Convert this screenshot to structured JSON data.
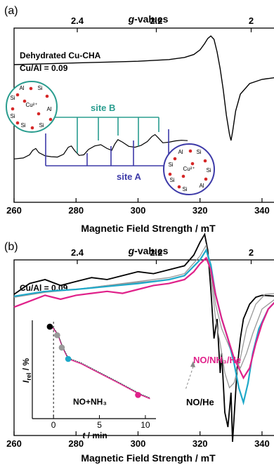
{
  "chart_data": [
    {
      "panel_label": "(a)",
      "type": "line",
      "top_axis_title_g": "g",
      "top_axis_title_rest": "-values",
      "top_ticks": [
        {
          "label": "2.4",
          "field_mT": 280.4
        },
        {
          "label": "2.2",
          "field_mT": 305.9
        },
        {
          "label": "2",
          "field_mT": 336.5
        }
      ],
      "xlabel": "Magnetic Field Strength / mT",
      "xlim": [
        260,
        345
      ],
      "xticks": [
        "260",
        "280",
        "300",
        "320",
        "340"
      ],
      "annotations": [
        "Dehydrated Cu-CHA",
        "Cu/Al = 0.09",
        "site B",
        "site A"
      ],
      "series": [
        {
          "x": [
            260,
            270,
            280,
            290,
            300,
            310,
            315,
            318,
            320,
            321.5,
            322.5,
            323.5,
            324.5,
            325.5,
            326.5,
            327.5,
            328.5,
            329.5,
            330,
            330.5,
            331.5,
            333,
            336,
            340,
            345
          ],
          "y": [
            0.3,
            0.32,
            0.34,
            0.36,
            0.38,
            0.42,
            0.47,
            0.54,
            0.65,
            0.8,
            0.92,
            0.98,
            0.9,
            0.6,
            0.2,
            -0.3,
            -0.9,
            -1.35,
            -1.5,
            -1.3,
            -0.8,
            -0.4,
            -0.15,
            -0.05,
            0
          ]
        },
        {
          "x": [
            260,
            263,
            265,
            266,
            267,
            268,
            270,
            272,
            274,
            276,
            277.5,
            278.5,
            279.5,
            281,
            282.5,
            284,
            286,
            288,
            290,
            291.5,
            292.5,
            293.5,
            295,
            297,
            299,
            301,
            303,
            304.5,
            305.5,
            306.5,
            308,
            310,
            312,
            314,
            316
          ],
          "y": [
            -0.25,
            -0.22,
            -0.12,
            0.02,
            0.08,
            -0.05,
            -0.15,
            -0.18,
            -0.19,
            -0.1,
            0.12,
            0.16,
            0.02,
            -0.14,
            -0.12,
            0.05,
            0.16,
            0.2,
            0.08,
            0.02,
            0.22,
            0.36,
            0.28,
            0.15,
            0.12,
            0.18,
            0.3,
            0.46,
            0.52,
            0.42,
            0.26,
            0.28,
            0.32,
            0.34,
            0.33
          ]
        }
      ]
    },
    {
      "panel_label": "(b)",
      "type": "line",
      "top_axis_title_g": "g",
      "top_axis_title_rest": "-values",
      "top_ticks": [
        {
          "label": "2.4",
          "field_mT": 280.4
        },
        {
          "label": "2.2",
          "field_mT": 305.9
        },
        {
          "label": "2",
          "field_mT": 336.5
        }
      ],
      "xlabel": "Magnetic Field Strength / mT",
      "xlim": [
        260,
        345
      ],
      "xticks": [
        "260",
        "280",
        "300",
        "320",
        "340"
      ],
      "annotations": [
        "Cu/Al = 0.09",
        "NO/NH₃/He",
        "NO/He"
      ],
      "colors": {
        "magenta": "#e0218a",
        "cyan": "#1fa9c9",
        "black": "#000000",
        "gray": "#999999"
      },
      "series": [
        {
          "name": "NO/He",
          "color": "#000000",
          "x": [
            260,
            265,
            270,
            275,
            280,
            285,
            290,
            295,
            300,
            305,
            310,
            315,
            318,
            320,
            321.5,
            322.5,
            323.5,
            324.5,
            325.5,
            326.5,
            327,
            328,
            329,
            330,
            330.5,
            331,
            332,
            333,
            334,
            336,
            338,
            340,
            345
          ],
          "y": [
            0.05,
            0.16,
            0.2,
            0.14,
            0.18,
            0.22,
            0.2,
            0.24,
            0.28,
            0.26,
            0.3,
            0.34,
            0.45,
            0.58,
            0.66,
            0.5,
            0.1,
            -0.4,
            -0.2,
            -0.75,
            -0.55,
            -1.15,
            -1.3,
            -0.95,
            -1.45,
            -1.2,
            -0.7,
            -0.4,
            -0.2,
            -0.05,
            0.02,
            0.04,
            0.03
          ]
        },
        {
          "name": "",
          "color": "#999999",
          "x": [
            260,
            270,
            280,
            290,
            300,
            310,
            315,
            320,
            322,
            323.5,
            325,
            326.5,
            328,
            329.5,
            331,
            333,
            335,
            338,
            341,
            345
          ],
          "y": [
            0.02,
            0.08,
            0.1,
            0.14,
            0.18,
            0.22,
            0.26,
            0.44,
            0.55,
            0.25,
            -0.2,
            -0.45,
            -0.75,
            -0.9,
            -0.85,
            -0.6,
            -0.3,
            -0.05,
            0.05,
            0.06
          ]
        },
        {
          "name": "",
          "color": "#999999",
          "x": [
            260,
            270,
            280,
            290,
            300,
            310,
            315,
            320,
            322,
            323.5,
            325,
            327,
            329,
            331,
            333,
            335,
            337,
            340,
            345
          ],
          "y": [
            0.02,
            0.07,
            0.1,
            0.14,
            0.17,
            0.2,
            0.24,
            0.4,
            0.5,
            0.3,
            -0.05,
            -0.3,
            -0.45,
            -0.6,
            -0.7,
            -0.55,
            -0.35,
            -0.1,
            0.02
          ]
        },
        {
          "name": "",
          "color": "#1fa9c9",
          "x": [
            260,
            270,
            280,
            290,
            300,
            310,
            315,
            320,
            322,
            323.5,
            325,
            327,
            329,
            331,
            332.5,
            334,
            335.5,
            337,
            339,
            342,
            345
          ],
          "y": [
            0.03,
            0.08,
            0.1,
            0.13,
            0.16,
            0.2,
            0.24,
            0.4,
            0.5,
            0.35,
            0.05,
            -0.2,
            -0.4,
            -0.65,
            -0.9,
            -1.05,
            -0.85,
            -0.55,
            -0.3,
            -0.1,
            0.0
          ]
        },
        {
          "name": "NO/NH₃/He",
          "color": "#e0218a",
          "x": [
            260,
            265,
            270,
            275,
            280,
            285,
            290,
            295,
            300,
            305,
            310,
            315,
            318,
            320,
            322,
            323.5,
            325,
            327,
            329,
            331,
            332.5,
            334,
            336,
            338,
            340,
            342,
            345
          ],
          "y": [
            -0.08,
            -0.02,
            0.04,
            0.0,
            0.04,
            0.06,
            0.08,
            0.06,
            0.1,
            0.14,
            0.16,
            0.2,
            0.28,
            0.36,
            0.42,
            0.3,
            0.05,
            -0.2,
            -0.4,
            -0.6,
            -0.7,
            -0.8,
            -0.7,
            -0.45,
            -0.25,
            -0.1,
            0.0
          ]
        }
      ],
      "inset": {
        "type": "scatter",
        "ylabel_main": "I",
        "ylabel_sub": "rel",
        "ylabel_unit": " / %",
        "xlabel_t": "t",
        "xlabel_unit": " / min",
        "xlim": [
          -2,
          11
        ],
        "ylim": [
          0,
          100
        ],
        "xticks": [
          "0",
          "5",
          "10"
        ],
        "text": "NO+NH₃",
        "fit": {
          "x": [
            -0.5,
            0,
            0.5,
            1,
            1.6,
            3,
            5,
            7,
            9.5,
            10.5
          ],
          "y": [
            95,
            92,
            85,
            72,
            60,
            55,
            45,
            35,
            22,
            18
          ]
        },
        "points": [
          {
            "x": -0.4,
            "y": 94,
            "color": "#000000"
          },
          {
            "x": 0.4,
            "y": 85,
            "color": "#999999"
          },
          {
            "x": 0.9,
            "y": 72,
            "color": "#999999"
          },
          {
            "x": 1.6,
            "y": 60,
            "color": "#1fa9c9"
          },
          {
            "x": 9.2,
            "y": 22,
            "color": "#e0218a"
          }
        ]
      }
    }
  ]
}
